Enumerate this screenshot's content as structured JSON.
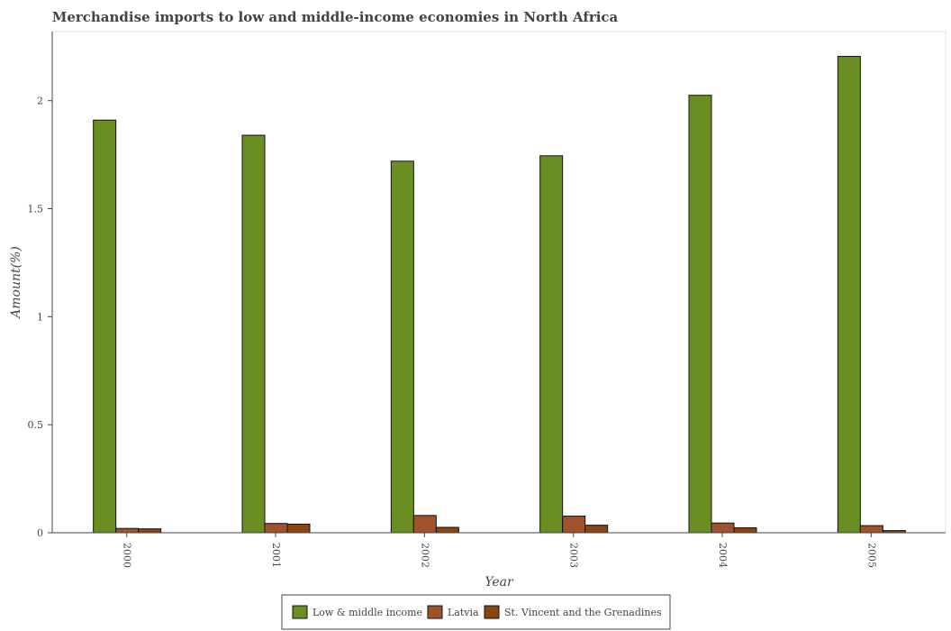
{
  "chart_data": {
    "type": "bar",
    "title": "Merchandise imports to low and middle-income economies in North Africa",
    "xlabel": "Year",
    "ylabel": "Amount(%)",
    "categories": [
      "2000",
      "2001",
      "2002",
      "2003",
      "2004",
      "2005"
    ],
    "series": [
      {
        "name": "Low & middle income",
        "color": "#6b8e23",
        "values": [
          1.91,
          1.84,
          1.72,
          1.745,
          2.025,
          2.205
        ]
      },
      {
        "name": "Latvia",
        "color": "#a0522d",
        "values": [
          0.02,
          0.043,
          0.08,
          0.077,
          0.045,
          0.033
        ]
      },
      {
        "name": "St. Vincent and the Grenadines",
        "color": "#8b4513",
        "values": [
          0.018,
          0.04,
          0.025,
          0.035,
          0.023,
          0.01
        ]
      }
    ],
    "yticks": [
      0,
      0.5,
      1,
      1.5,
      2
    ],
    "ytick_labels": [
      "0",
      "0.5",
      "1",
      "1.5",
      "2"
    ],
    "ylim": [
      0,
      2.32
    ],
    "grid": false,
    "legend_position": "bottom-center"
  }
}
